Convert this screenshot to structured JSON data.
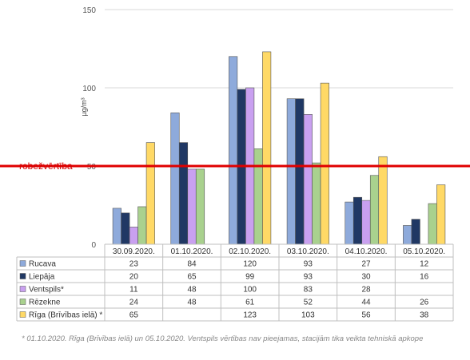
{
  "chart_data": {
    "type": "bar",
    "ylabel": "µg/m³",
    "ylim": [
      0,
      150
    ],
    "yticks": [
      0,
      50,
      100,
      150
    ],
    "grid": true,
    "legend": "table-below",
    "categories": [
      "30.09.2020.",
      "01.10.2020.",
      "02.10.2020.",
      "03.10.2020.",
      "04.10.2020.",
      "05.10.2020."
    ],
    "series": [
      {
        "name": "Rucava",
        "color": "#8eaadb",
        "values": [
          23,
          84,
          120,
          93,
          27,
          12
        ]
      },
      {
        "name": "Liepāja",
        "color": "#203864",
        "values": [
          20,
          65,
          99,
          93,
          30,
          16
        ]
      },
      {
        "name": "Ventspils*",
        "color": "#c9a0f0",
        "values": [
          11,
          48,
          100,
          83,
          28,
          null
        ]
      },
      {
        "name": "Rēzekne",
        "color": "#a9d18e",
        "values": [
          24,
          48,
          61,
          52,
          44,
          26
        ]
      },
      {
        "name": "Rīga (Brīvības ielā) *",
        "color": "#ffd966",
        "values": [
          65,
          null,
          123,
          103,
          56,
          38
        ]
      }
    ],
    "limit": {
      "label": "robežvērtība",
      "value": 50,
      "color": "#e00000"
    }
  },
  "footnote": "* 01.10.2020. Rīga (Brīvības ielā)  un 05.10.2020. Ventspils vērtības nav pieejamas, stacijām tika veikta tehniskā apkope"
}
